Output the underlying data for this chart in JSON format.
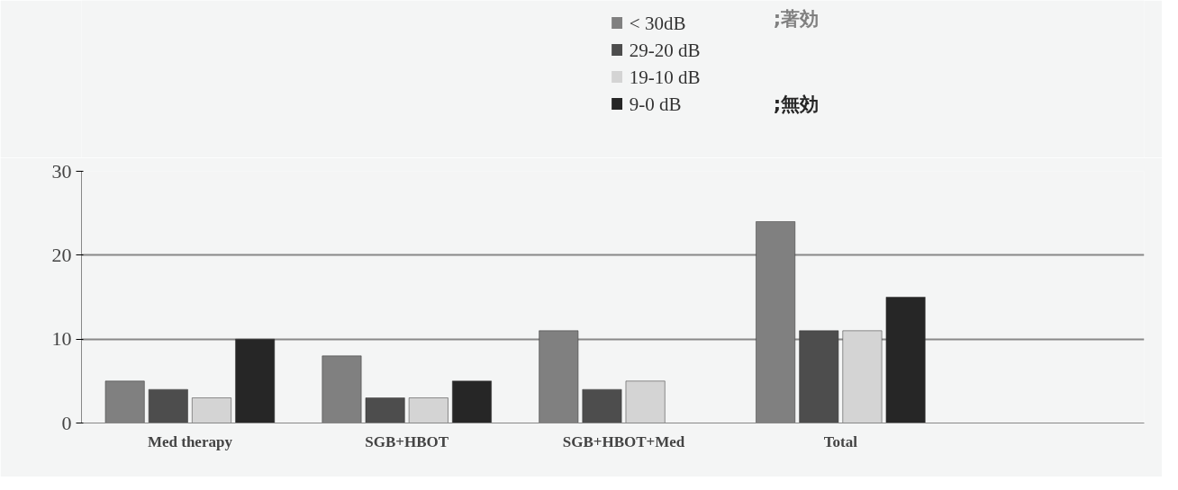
{
  "chart_data": {
    "type": "bar",
    "categories": [
      "Med therapy",
      "SGB+HBOT",
      "SGB+HBOT+Med",
      "Total"
    ],
    "series": [
      {
        "name": "< 30dB",
        "color": "#808080",
        "values": [
          5,
          8,
          11,
          24
        ]
      },
      {
        "name": "29-20 dB",
        "color": "#4d4d4d",
        "values": [
          4,
          3,
          4,
          11
        ]
      },
      {
        "name": "19-10 dB",
        "color": "#d4d4d4",
        "values": [
          3,
          3,
          5,
          11
        ]
      },
      {
        "name": "9-0 dB",
        "color": "#262626",
        "values": [
          10,
          5,
          0,
          15
        ]
      }
    ],
    "ylim": [
      0,
      30
    ],
    "yticks": [
      0,
      10,
      20,
      30
    ],
    "grid": "y",
    "legend": "top",
    "annotations": [
      ";著効",
      ";無効"
    ]
  }
}
